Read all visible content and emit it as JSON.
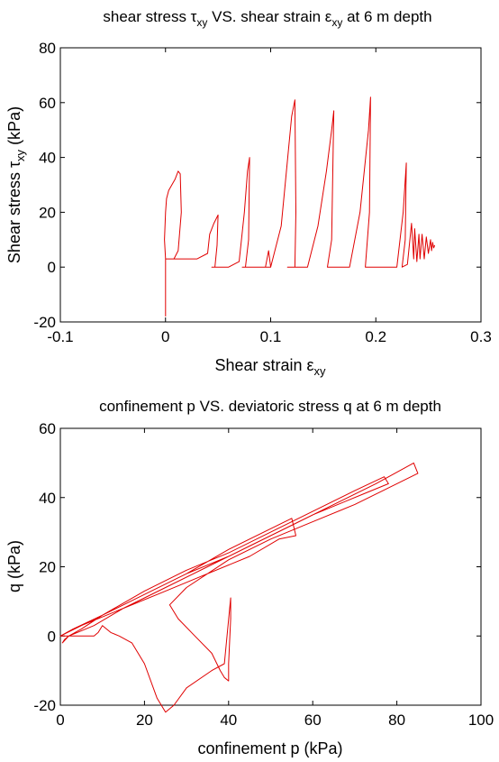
{
  "chart_data": [
    {
      "type": "line",
      "title_parts": [
        "shear stress τ",
        "xy",
        " VS. shear strain ε",
        "xy",
        " at 6 m depth"
      ],
      "xlabel_parts": [
        "Shear strain ε",
        "xy"
      ],
      "ylabel_parts": [
        "Shear stress τ",
        "xy",
        " (kPa)"
      ],
      "xlim": [
        -0.1,
        0.3
      ],
      "ylim": [
        -20,
        80
      ],
      "xticks": [
        "-0.1",
        "0",
        "0.1",
        "0.2",
        "0.3"
      ],
      "yticks": [
        "-20",
        "0",
        "20",
        "40",
        "60",
        "80"
      ],
      "grid": false,
      "series_color": "#e00000",
      "x": [
        0,
        0,
        -0.001,
        0,
        0.001,
        0.003,
        0.006,
        0.009,
        0.012,
        0.014,
        0.015,
        0.012,
        0.008,
        0.004,
        0.001,
        0.0,
        0.005,
        0.03,
        0.04,
        0.042,
        0.046,
        0.05,
        0.049,
        0.047,
        0.044,
        0.046,
        0.05,
        0.06,
        0.07,
        0.075,
        0.078,
        0.08,
        0.079,
        0.076,
        0.073,
        0.075,
        0.08,
        0.09,
        0.1,
        0.098,
        0.095,
        0.1,
        0.11,
        0.115,
        0.12,
        0.123,
        0.124,
        0.123,
        0.12,
        0.116,
        0.118,
        0.125,
        0.135,
        0.145,
        0.153,
        0.158,
        0.16,
        0.158,
        0.154,
        0.157,
        0.165,
        0.175,
        0.185,
        0.193,
        0.195,
        0.194,
        0.19,
        0.2,
        0.21,
        0.22,
        0.226,
        0.229,
        0.228,
        0.225,
        0.23,
        0.234,
        0.236,
        0.237,
        0.239,
        0.241,
        0.242,
        0.244,
        0.246,
        0.248,
        0.25,
        0.252,
        0.253,
        0.254,
        0.255,
        0.256
      ],
      "y": [
        -18,
        3,
        10,
        20,
        25,
        28,
        30,
        32,
        35,
        34,
        20,
        6,
        3,
        3,
        3,
        3,
        3,
        3,
        5,
        12,
        16,
        19,
        8,
        0,
        0,
        0,
        0,
        0,
        2,
        20,
        35,
        40,
        10,
        0,
        0,
        0,
        0,
        0,
        0,
        6,
        0,
        0,
        15,
        35,
        55,
        61,
        20,
        0,
        0,
        0,
        0,
        0,
        0,
        15,
        35,
        50,
        57,
        10,
        0,
        0,
        0,
        0,
        20,
        50,
        62,
        20,
        0,
        0,
        0,
        0,
        20,
        38,
        10,
        0,
        1,
        16,
        3,
        14,
        2,
        12,
        3,
        12,
        3,
        11,
        5,
        10,
        6,
        9,
        7,
        8
      ]
    },
    {
      "type": "line",
      "title": "confinement p VS. deviatoric stress q at 6 m depth",
      "xlabel": "confinement p (kPa)",
      "ylabel": "q (kPa)",
      "xlim": [
        0,
        100
      ],
      "ylim": [
        -20,
        60
      ],
      "xticks": [
        "0",
        "20",
        "40",
        "60",
        "80",
        "100"
      ],
      "yticks": [
        "-20",
        "0",
        "20",
        "40",
        "60"
      ],
      "grid": false,
      "series_color": "#e00000",
      "x": [
        0,
        10,
        20,
        30,
        40,
        50,
        55,
        56,
        52,
        45,
        35,
        25,
        15,
        8,
        4,
        2,
        1,
        0.5,
        2,
        5,
        10,
        20,
        30,
        40,
        50,
        60,
        70,
        77,
        78,
        72,
        60,
        50,
        40,
        30,
        20,
        10,
        3,
        0,
        5,
        15,
        25,
        35,
        45,
        55,
        65,
        75,
        84,
        85,
        80,
        70,
        60,
        50,
        40,
        30,
        26,
        28,
        32,
        36,
        38,
        39,
        40,
        40,
        40.5,
        40.5,
        39,
        36,
        30,
        27,
        25,
        23,
        20,
        17,
        14,
        12,
        10,
        9,
        8,
        4,
        2,
        0
      ],
      "y": [
        0,
        6,
        12,
        18,
        25,
        31,
        34,
        29,
        28,
        23,
        18,
        13,
        8,
        3,
        1,
        0,
        -1,
        -2,
        0,
        2,
        6,
        13,
        19,
        24,
        30,
        36,
        42,
        46,
        44,
        41,
        35,
        29,
        23,
        18,
        12,
        6,
        2,
        0,
        3,
        8,
        14,
        20,
        26,
        32,
        38,
        44,
        50,
        47,
        44,
        38,
        33,
        28,
        22,
        14,
        9,
        5,
        0,
        -5,
        -10,
        -12,
        -13,
        -8,
        5,
        11,
        -8,
        -10,
        -15,
        -20,
        -22,
        -18,
        -8,
        -2,
        0,
        1,
        3,
        1,
        0,
        0,
        0,
        0
      ]
    }
  ]
}
